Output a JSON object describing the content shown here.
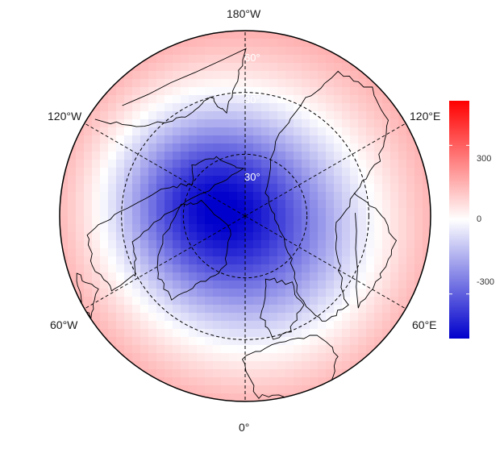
{
  "map": {
    "longitude_labels": {
      "top": "180°W",
      "bottom": "0°",
      "upper_left": "120°W",
      "upper_right": "120°E",
      "lower_left": "60°W",
      "lower_right": "60°E"
    },
    "latitude_labels": [
      "30°",
      "60°",
      "30°"
    ],
    "field_center": {
      "value": -220,
      "lon_deg": -40,
      "colat_deg": 12
    },
    "secondary_center": {
      "value": -300,
      "lon_deg": 110,
      "colat_deg": 25
    },
    "outer_ring_value": 160
  },
  "colorbar": {
    "tick_labels": [
      "300",
      "0",
      "-300"
    ],
    "tick_values": [
      300,
      0,
      -300
    ],
    "range": [
      -480,
      480
    ],
    "colors": {
      "low": "#0000cc",
      "mid": "#ffffff",
      "high": "#ff0000"
    }
  }
}
